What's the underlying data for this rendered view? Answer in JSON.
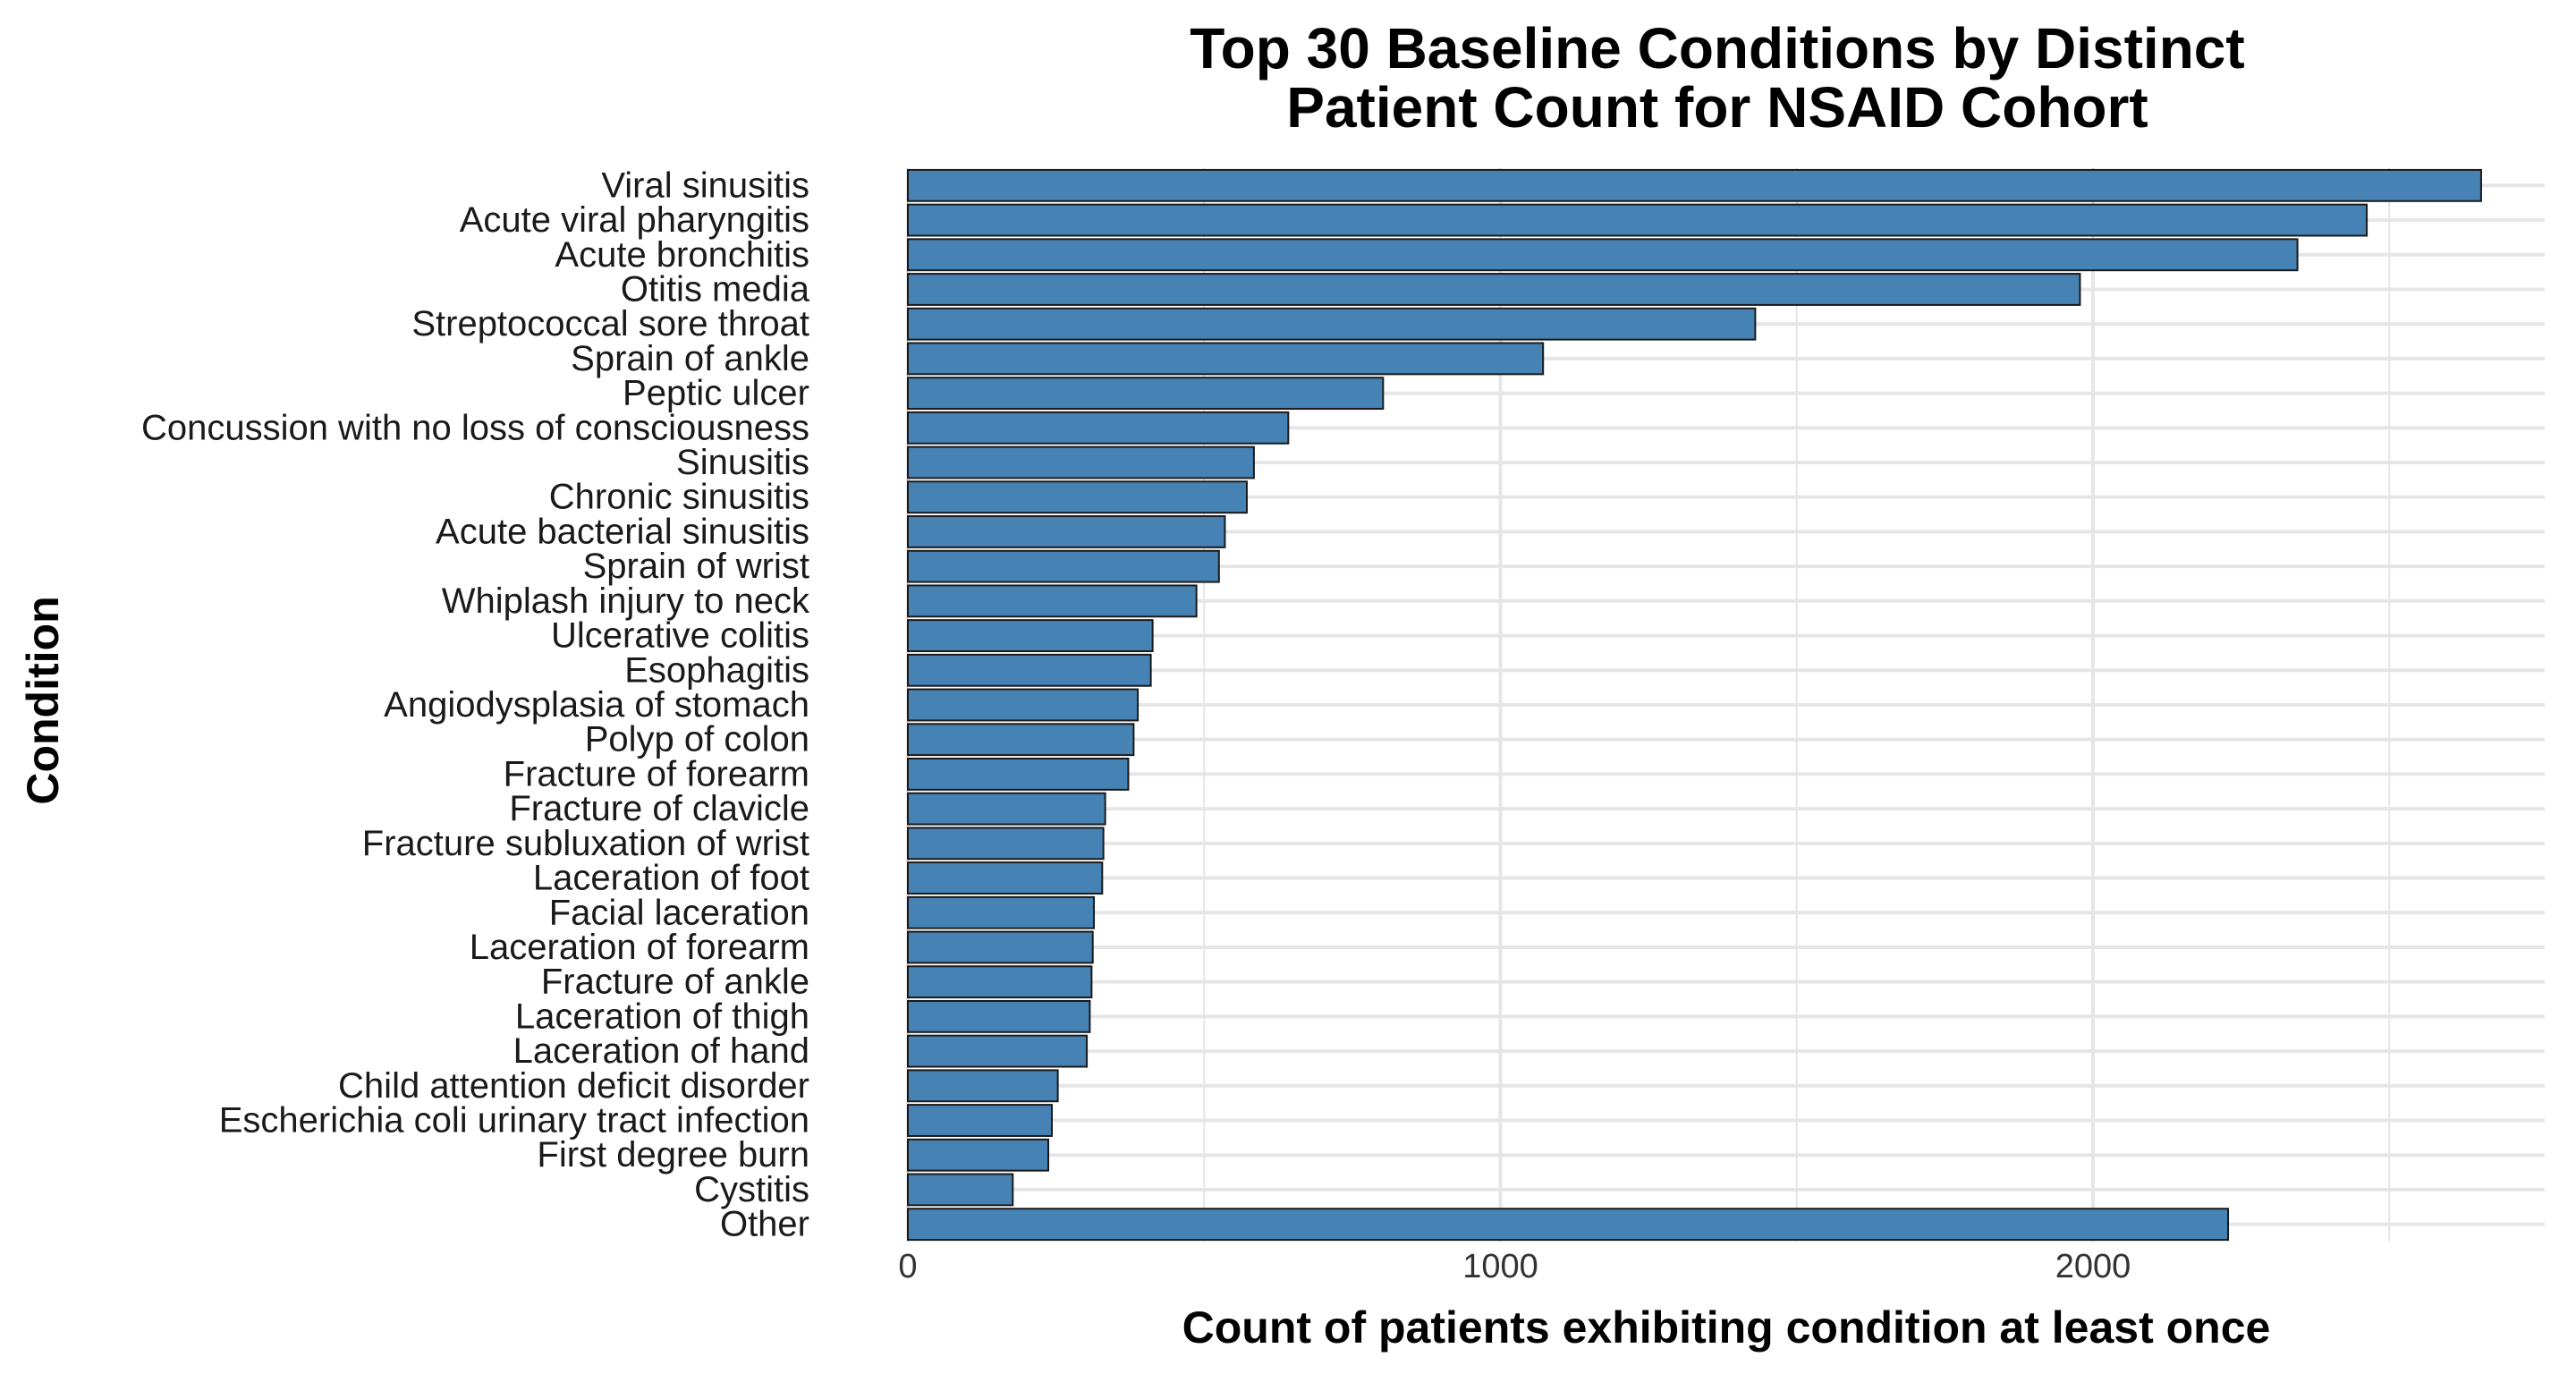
{
  "chart_data": {
    "type": "bar",
    "orientation": "horizontal",
    "title_lines": [
      "Top 30 Baseline Conditions by Distinct",
      "Patient Count for NSAID Cohort"
    ],
    "xlabel": "Count of patients exhibiting condition at least once",
    "ylabel": "Condition",
    "xlim": [
      0,
      2800
    ],
    "x_ticks": [
      0,
      1000,
      2000
    ],
    "x_tick_labels": [
      "0",
      "1000",
      "2000"
    ],
    "grid": true,
    "bar_color": "#4682B4",
    "bar_outline_color": "#1a1a1a",
    "categories": [
      "Viral sinusitis",
      "Acute viral pharyngitis",
      "Acute bronchitis",
      "Otitis media",
      "Streptococcal sore throat",
      "Sprain of ankle",
      "Peptic ulcer",
      "Concussion with no loss of consciousness",
      "Sinusitis",
      "Chronic sinusitis",
      "Acute bacterial sinusitis",
      "Sprain of wrist",
      "Whiplash injury to neck",
      "Ulcerative colitis",
      "Esophagitis",
      "Angiodysplasia of stomach",
      "Polyp of colon",
      "Fracture of forearm",
      "Fracture of clavicle",
      "Fracture subluxation of wrist",
      "Laceration of foot",
      "Facial laceration",
      "Laceration of forearm",
      "Fracture of ankle",
      "Laceration of thigh",
      "Laceration of hand",
      "Child attention deficit disorder",
      "Escherichia coli urinary tract infection",
      "First degree burn",
      "Cystitis",
      "Other"
    ],
    "values": [
      2655,
      2462,
      2345,
      1978,
      1430,
      1072,
      802,
      642,
      584,
      572,
      535,
      525,
      487,
      413,
      410,
      388,
      381,
      372,
      333,
      330,
      328,
      314,
      312,
      310,
      307,
      302,
      253,
      243,
      237,
      177,
      2228
    ]
  }
}
